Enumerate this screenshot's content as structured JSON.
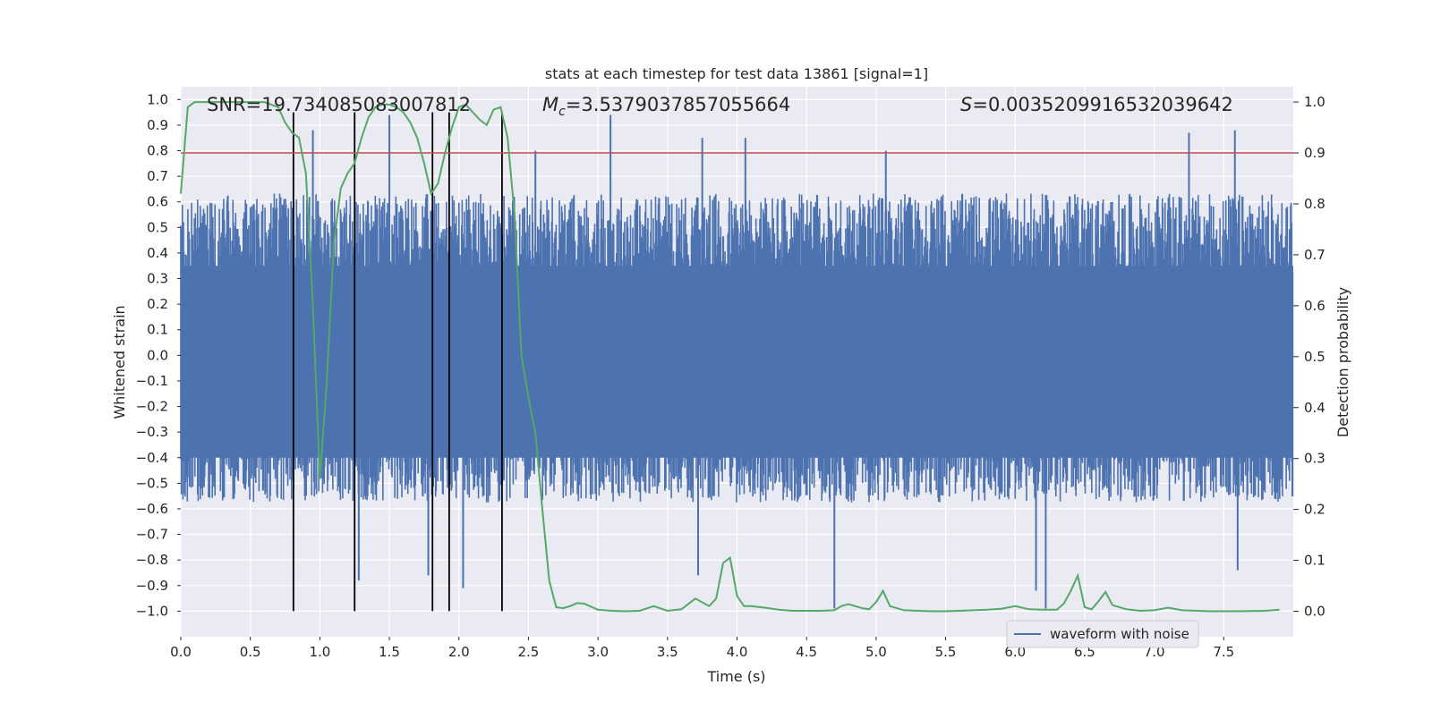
{
  "chart_data": {
    "type": "line",
    "title": "stats at each timestep for test data 13861 [signal=1]",
    "xlabel": "Time (s)",
    "ylabel_left": "Whitened strain",
    "ylabel_right": "Detection probability",
    "xlim": [
      0.0,
      8.0
    ],
    "ylim_left": [
      -1.1,
      1.05
    ],
    "ylim_right": [
      -0.05,
      1.03
    ],
    "grid": true,
    "x_ticks": [
      "0.0",
      "0.5",
      "1.0",
      "1.5",
      "2.0",
      "2.5",
      "3.0",
      "3.5",
      "4.0",
      "4.5",
      "5.0",
      "5.5",
      "6.0",
      "6.5",
      "7.0",
      "7.5"
    ],
    "x_tick_values": [
      0.0,
      0.5,
      1.0,
      1.5,
      2.0,
      2.5,
      3.0,
      3.5,
      4.0,
      4.5,
      5.0,
      5.5,
      6.0,
      6.5,
      7.0,
      7.5
    ],
    "left_ticks": [
      "1.0",
      "0.9",
      "0.8",
      "0.7",
      "0.6",
      "0.5",
      "0.4",
      "0.3",
      "0.2",
      "0.1",
      "0.0",
      "-0.1",
      "-0.2",
      "-0.3",
      "-0.4",
      "-0.5",
      "-0.6",
      "-0.7",
      "-0.8",
      "-0.9",
      "-1.0"
    ],
    "left_tick_values": [
      1.0,
      0.9,
      0.8,
      0.7,
      0.6,
      0.5,
      0.4,
      0.3,
      0.2,
      0.1,
      0.0,
      -0.1,
      -0.2,
      -0.3,
      -0.4,
      -0.5,
      -0.6,
      -0.7,
      -0.8,
      -0.9,
      -1.0
    ],
    "right_ticks": [
      "1.0",
      "0.9",
      "0.8",
      "0.7",
      "0.6",
      "0.5",
      "0.4",
      "0.3",
      "0.2",
      "0.1",
      "0.0"
    ],
    "right_tick_values": [
      1.0,
      0.9,
      0.8,
      0.7,
      0.6,
      0.5,
      0.4,
      0.3,
      0.2,
      0.1,
      0.0
    ],
    "annotations": {
      "snr": "SNR=19.734085083007812",
      "mc_symbol": "M",
      "mc_subscript": "c",
      "mc_value": "=3.5379037857055664",
      "s_symbol": "S",
      "s_value": "=0.0035209916532039642"
    },
    "threshold": {
      "value": 0.9,
      "axis": "right",
      "color": "#c44e52"
    },
    "vertical_markers": {
      "x": [
        0.81,
        1.25,
        1.81,
        1.93,
        2.31
      ],
      "y_from": -1.0,
      "y_to": 0.95,
      "color": "#000000"
    },
    "series": [
      {
        "name": "waveform with noise",
        "axis": "left",
        "color": "#4c72b0",
        "kind": "dense-noise",
        "sample_rate_hz": 256,
        "duration_s": 8.0,
        "typical_upper_envelope": 0.55,
        "typical_lower_envelope": -0.5,
        "max": 0.94,
        "min": -0.99,
        "peaks": [
          {
            "x": 0.95,
            "y": 0.88
          },
          {
            "x": 1.5,
            "y": 0.94
          },
          {
            "x": 3.09,
            "y": 0.94
          },
          {
            "x": 2.55,
            "y": 0.8
          },
          {
            "x": 3.75,
            "y": 0.85
          },
          {
            "x": 4.06,
            "y": 0.85
          },
          {
            "x": 5.07,
            "y": 0.8
          },
          {
            "x": 7.58,
            "y": 0.88
          },
          {
            "x": 7.25,
            "y": 0.87
          },
          {
            "x": 1.28,
            "y": -0.88
          },
          {
            "x": 1.78,
            "y": -0.86
          },
          {
            "x": 2.03,
            "y": -0.91
          },
          {
            "x": 3.72,
            "y": -0.86
          },
          {
            "x": 4.7,
            "y": -0.99
          },
          {
            "x": 6.22,
            "y": -0.99
          },
          {
            "x": 6.15,
            "y": -0.92
          },
          {
            "x": 7.6,
            "y": -0.84
          }
        ],
        "in_legend": true
      },
      {
        "name": "detection probability",
        "axis": "right",
        "color": "#55a868",
        "in_legend": false,
        "x": [
          0.0,
          0.05,
          0.1,
          0.2,
          0.3,
          0.4,
          0.5,
          0.6,
          0.7,
          0.75,
          0.8,
          0.85,
          0.9,
          0.95,
          1.0,
          1.05,
          1.1,
          1.15,
          1.2,
          1.25,
          1.3,
          1.35,
          1.4,
          1.45,
          1.5,
          1.55,
          1.6,
          1.65,
          1.7,
          1.75,
          1.8,
          1.85,
          1.9,
          1.95,
          2.0,
          2.05,
          2.1,
          2.15,
          2.2,
          2.25,
          2.3,
          2.35,
          2.4,
          2.45,
          2.5,
          2.55,
          2.6,
          2.65,
          2.7,
          2.75,
          2.8,
          2.85,
          2.9,
          3.0,
          3.1,
          3.2,
          3.3,
          3.4,
          3.5,
          3.6,
          3.7,
          3.8,
          3.85,
          3.9,
          3.95,
          4.0,
          4.05,
          4.1,
          4.2,
          4.3,
          4.4,
          4.5,
          4.6,
          4.7,
          4.75,
          4.8,
          4.85,
          4.9,
          4.95,
          5.0,
          5.05,
          5.1,
          5.2,
          5.3,
          5.4,
          5.5,
          5.6,
          5.7,
          5.8,
          5.9,
          6.0,
          6.1,
          6.2,
          6.3,
          6.35,
          6.4,
          6.45,
          6.5,
          6.55,
          6.6,
          6.65,
          6.7,
          6.8,
          6.9,
          7.0,
          7.1,
          7.2,
          7.4,
          7.6,
          7.8,
          7.9
        ],
        "y": [
          0.82,
          0.99,
          1.0,
          1.0,
          1.0,
          1.0,
          1.0,
          1.0,
          0.99,
          0.96,
          0.94,
          0.93,
          0.86,
          0.6,
          0.26,
          0.45,
          0.72,
          0.83,
          0.86,
          0.88,
          0.93,
          0.97,
          0.99,
          0.995,
          0.995,
          0.99,
          0.98,
          0.96,
          0.93,
          0.88,
          0.82,
          0.84,
          0.9,
          0.95,
          0.99,
          0.995,
          0.98,
          0.965,
          0.955,
          0.985,
          0.99,
          0.93,
          0.78,
          0.5,
          0.42,
          0.35,
          0.2,
          0.06,
          0.008,
          0.006,
          0.01,
          0.016,
          0.015,
          0.003,
          0.001,
          0.0,
          0.001,
          0.01,
          0.001,
          0.004,
          0.025,
          0.01,
          0.025,
          0.095,
          0.105,
          0.03,
          0.01,
          0.01,
          0.007,
          0.003,
          0.001,
          0.001,
          0.001,
          0.002,
          0.01,
          0.014,
          0.01,
          0.006,
          0.004,
          0.018,
          0.04,
          0.01,
          0.002,
          0.001,
          0.0,
          0.0,
          0.001,
          0.002,
          0.003,
          0.005,
          0.01,
          0.004,
          0.003,
          0.003,
          0.015,
          0.04,
          0.07,
          0.008,
          0.004,
          0.02,
          0.038,
          0.012,
          0.004,
          0.001,
          0.002,
          0.007,
          0.002,
          0.0,
          0.0,
          0.001,
          0.003
        ]
      }
    ],
    "legend": {
      "placement": "lower-right",
      "entries": [
        "waveform with noise"
      ]
    }
  }
}
